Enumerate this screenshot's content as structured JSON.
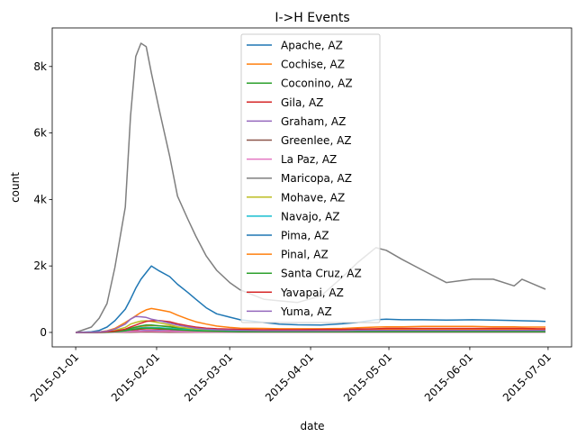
{
  "chart_data": {
    "type": "line",
    "title": "I->H Events",
    "xlabel": "date",
    "ylabel": "count",
    "xlim": [
      "2014-12-23",
      "2015-07-10"
    ],
    "ylim": [
      -435,
      9160
    ],
    "xticks": [
      "2015-01-01",
      "2015-02-01",
      "2015-03-01",
      "2015-04-01",
      "2015-05-01",
      "2015-06-01",
      "2015-07-01"
    ],
    "yticks": [
      0,
      2000,
      4000,
      6000,
      8000
    ],
    "ytick_labels": [
      "0",
      "2k",
      "4k",
      "6k",
      "8k"
    ],
    "grid": false,
    "legend_placement": "upper center",
    "x": [
      "2015-01-01",
      "2015-01-07",
      "2015-01-10",
      "2015-01-13",
      "2015-01-16",
      "2015-01-20",
      "2015-01-22",
      "2015-01-24",
      "2015-01-26",
      "2015-01-28",
      "2015-01-30",
      "2015-02-02",
      "2015-02-06",
      "2015-02-09",
      "2015-02-13",
      "2015-02-16",
      "2015-02-20",
      "2015-02-24",
      "2015-03-01",
      "2015-03-05",
      "2015-03-14",
      "2015-03-20",
      "2015-03-27",
      "2015-04-05",
      "2015-04-13",
      "2015-04-19",
      "2015-04-26",
      "2015-04-30",
      "2015-05-06",
      "2015-05-14",
      "2015-05-23",
      "2015-06-02",
      "2015-06-10",
      "2015-06-18",
      "2015-06-21",
      "2015-06-27",
      "2015-06-30"
    ],
    "series": [
      {
        "name": "Apache, AZ",
        "color": "#1f77b4",
        "values": [
          0,
          0,
          2,
          5,
          10,
          20,
          30,
          40,
          50,
          60,
          60,
          55,
          50,
          40,
          35,
          30,
          25,
          20,
          20,
          20,
          20,
          20,
          20,
          20,
          20,
          20,
          20,
          20,
          20,
          20,
          20,
          20,
          20,
          20,
          20,
          20,
          20
        ]
      },
      {
        "name": "Cochise, AZ",
        "color": "#ff7f0e",
        "values": [
          0,
          0,
          5,
          10,
          30,
          60,
          100,
          140,
          180,
          200,
          210,
          200,
          180,
          150,
          120,
          100,
          80,
          70,
          60,
          60,
          60,
          60,
          60,
          70,
          70,
          80,
          80,
          90,
          90,
          90,
          90,
          90,
          90,
          90,
          90,
          90,
          90
        ]
      },
      {
        "name": "Coconino, AZ",
        "color": "#2ca02c",
        "values": [
          0,
          0,
          5,
          10,
          30,
          80,
          120,
          160,
          200,
          220,
          220,
          200,
          170,
          130,
          100,
          80,
          60,
          50,
          40,
          35,
          30,
          30,
          30,
          30,
          30,
          30,
          30,
          30,
          30,
          30,
          30,
          30,
          30,
          30,
          30,
          30,
          30
        ]
      },
      {
        "name": "Gila, AZ",
        "color": "#d62728",
        "values": [
          0,
          0,
          5,
          10,
          20,
          40,
          60,
          80,
          100,
          110,
          110,
          100,
          90,
          70,
          60,
          50,
          40,
          35,
          30,
          30,
          30,
          30,
          30,
          30,
          30,
          30,
          30,
          30,
          30,
          30,
          30,
          30,
          30,
          30,
          30,
          30,
          30
        ]
      },
      {
        "name": "Graham, AZ",
        "color": "#9467bd",
        "values": [
          0,
          0,
          2,
          5,
          10,
          20,
          30,
          40,
          50,
          55,
          55,
          50,
          45,
          40,
          30,
          25,
          20,
          20,
          15,
          15,
          15,
          15,
          15,
          15,
          15,
          15,
          15,
          15,
          15,
          15,
          15,
          15,
          15,
          15,
          15,
          15,
          15
        ]
      },
      {
        "name": "Greenlee, AZ",
        "color": "#8c564b",
        "values": [
          0,
          0,
          0,
          2,
          3,
          5,
          8,
          10,
          12,
          12,
          12,
          10,
          8,
          6,
          5,
          5,
          4,
          3,
          3,
          3,
          3,
          3,
          3,
          3,
          3,
          3,
          3,
          3,
          3,
          3,
          3,
          3,
          3,
          3,
          3,
          3,
          3
        ]
      },
      {
        "name": "La Paz, AZ",
        "color": "#e377c2",
        "values": [
          0,
          0,
          2,
          5,
          10,
          20,
          25,
          30,
          35,
          40,
          40,
          35,
          30,
          25,
          20,
          15,
          12,
          10,
          10,
          10,
          10,
          10,
          10,
          10,
          10,
          10,
          10,
          10,
          10,
          10,
          10,
          10,
          10,
          10,
          10,
          10,
          10
        ]
      },
      {
        "name": "Maricopa, AZ",
        "color": "#7f7f7f",
        "values": [
          0,
          160,
          430,
          870,
          1950,
          3770,
          6500,
          8300,
          8700,
          8600,
          7800,
          6700,
          5300,
          4100,
          3400,
          2900,
          2300,
          1870,
          1500,
          1280,
          1000,
          950,
          900,
          1100,
          1650,
          2100,
          2550,
          2470,
          2200,
          1870,
          1500,
          1600,
          1600,
          1400,
          1600,
          1400,
          1300
        ]
      },
      {
        "name": "Mohave, AZ",
        "color": "#bcbd22",
        "values": [
          0,
          0,
          10,
          20,
          60,
          150,
          250,
          300,
          340,
          350,
          330,
          290,
          230,
          170,
          130,
          100,
          80,
          60,
          50,
          40,
          40,
          40,
          40,
          40,
          40,
          40,
          40,
          40,
          40,
          40,
          40,
          40,
          40,
          40,
          40,
          40,
          40
        ]
      },
      {
        "name": "Navajo, AZ",
        "color": "#17becf",
        "values": [
          0,
          0,
          5,
          10,
          20,
          50,
          80,
          110,
          140,
          150,
          150,
          140,
          120,
          100,
          80,
          60,
          50,
          40,
          35,
          30,
          30,
          30,
          30,
          30,
          30,
          30,
          30,
          30,
          30,
          30,
          30,
          30,
          30,
          30,
          30,
          30,
          30
        ]
      },
      {
        "name": "Pima, AZ",
        "color": "#1f77b4",
        "values": [
          0,
          20,
          60,
          160,
          350,
          700,
          1000,
          1330,
          1600,
          1800,
          2000,
          1850,
          1680,
          1450,
          1200,
          1000,
          740,
          560,
          460,
          380,
          300,
          250,
          230,
          220,
          260,
          300,
          380,
          400,
          380,
          380,
          370,
          380,
          370,
          360,
          350,
          340,
          330
        ]
      },
      {
        "name": "Pinal, AZ",
        "color": "#ff7f0e",
        "values": [
          0,
          5,
          15,
          50,
          120,
          300,
          400,
          500,
          600,
          680,
          720,
          680,
          620,
          520,
          400,
          320,
          250,
          190,
          150,
          130,
          120,
          110,
          110,
          110,
          120,
          140,
          160,
          170,
          170,
          180,
          180,
          180,
          170,
          170,
          160,
          160,
          160
        ]
      },
      {
        "name": "Santa Cruz, AZ",
        "color": "#2ca02c",
        "values": [
          0,
          0,
          5,
          10,
          20,
          50,
          80,
          100,
          120,
          130,
          130,
          120,
          100,
          80,
          60,
          50,
          40,
          30,
          25,
          20,
          20,
          20,
          20,
          20,
          20,
          20,
          20,
          20,
          20,
          20,
          20,
          20,
          20,
          20,
          20,
          20,
          20
        ]
      },
      {
        "name": "Yavapai, AZ",
        "color": "#d62728",
        "values": [
          0,
          0,
          10,
          20,
          40,
          100,
          160,
          220,
          280,
          330,
          350,
          360,
          320,
          260,
          200,
          160,
          130,
          110,
          100,
          90,
          80,
          80,
          80,
          90,
          90,
          100,
          110,
          120,
          120,
          120,
          120,
          120,
          120,
          120,
          120,
          110,
          110
        ]
      },
      {
        "name": "Yuma, AZ",
        "color": "#9467bd",
        "values": [
          0,
          5,
          15,
          40,
          100,
          250,
          400,
          480,
          470,
          450,
          400,
          350,
          280,
          220,
          170,
          130,
          100,
          80,
          70,
          60,
          50,
          50,
          50,
          50,
          50,
          60,
          60,
          60,
          60,
          60,
          60,
          60,
          60,
          60,
          60,
          60,
          60
        ]
      }
    ]
  }
}
